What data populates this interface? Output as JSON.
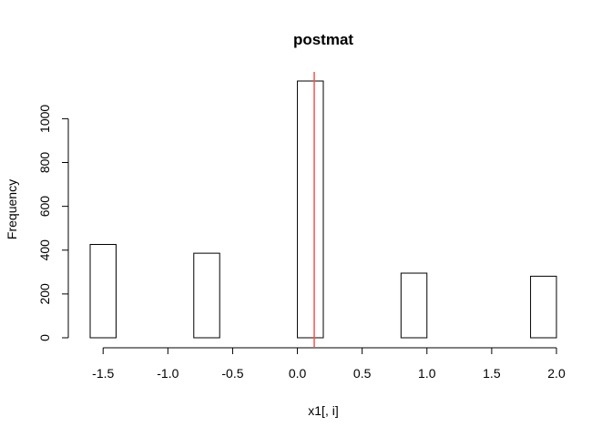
{
  "chart_data": {
    "type": "bar",
    "title": "postmat",
    "xlabel": "x1[, i]",
    "ylabel": "Frequency",
    "bins": [
      {
        "x0": -1.6,
        "x1": -1.4,
        "value": 426
      },
      {
        "x0": -1.4,
        "x1": -1.2,
        "value": 0
      },
      {
        "x0": -1.2,
        "x1": -1.0,
        "value": 0
      },
      {
        "x0": -1.0,
        "x1": -0.8,
        "value": 0
      },
      {
        "x0": -0.8,
        "x1": -0.6,
        "value": 386
      },
      {
        "x0": -0.6,
        "x1": -0.4,
        "value": 0
      },
      {
        "x0": -0.4,
        "x1": -0.2,
        "value": 0
      },
      {
        "x0": -0.2,
        "x1": 0.0,
        "value": 0
      },
      {
        "x0": 0.0,
        "x1": 0.2,
        "value": 1172
      },
      {
        "x0": 0.2,
        "x1": 0.4,
        "value": 0
      },
      {
        "x0": 0.4,
        "x1": 0.6,
        "value": 0
      },
      {
        "x0": 0.6,
        "x1": 0.8,
        "value": 0
      },
      {
        "x0": 0.8,
        "x1": 1.0,
        "value": 295
      },
      {
        "x0": 1.0,
        "x1": 1.2,
        "value": 0
      },
      {
        "x0": 1.2,
        "x1": 1.4,
        "value": 0
      },
      {
        "x0": 1.4,
        "x1": 1.6,
        "value": 0
      },
      {
        "x0": 1.6,
        "x1": 1.8,
        "value": 0
      },
      {
        "x0": 1.8,
        "x1": 2.0,
        "value": 281
      }
    ],
    "vline": {
      "x": 0.13,
      "color": "#ff4d4d"
    },
    "x_ticks": [
      "-1.5",
      "-1.0",
      "-0.5",
      "0.0",
      "0.5",
      "1.0",
      "1.5",
      "2.0"
    ],
    "y_ticks": [
      "0",
      "200",
      "400",
      "600",
      "800",
      "1000"
    ],
    "xlim": [
      -1.6,
      2.0
    ],
    "ylim": [
      0,
      1172
    ],
    "grid": false,
    "bar_fill": "#ffffff",
    "bar_stroke": "#000000"
  }
}
